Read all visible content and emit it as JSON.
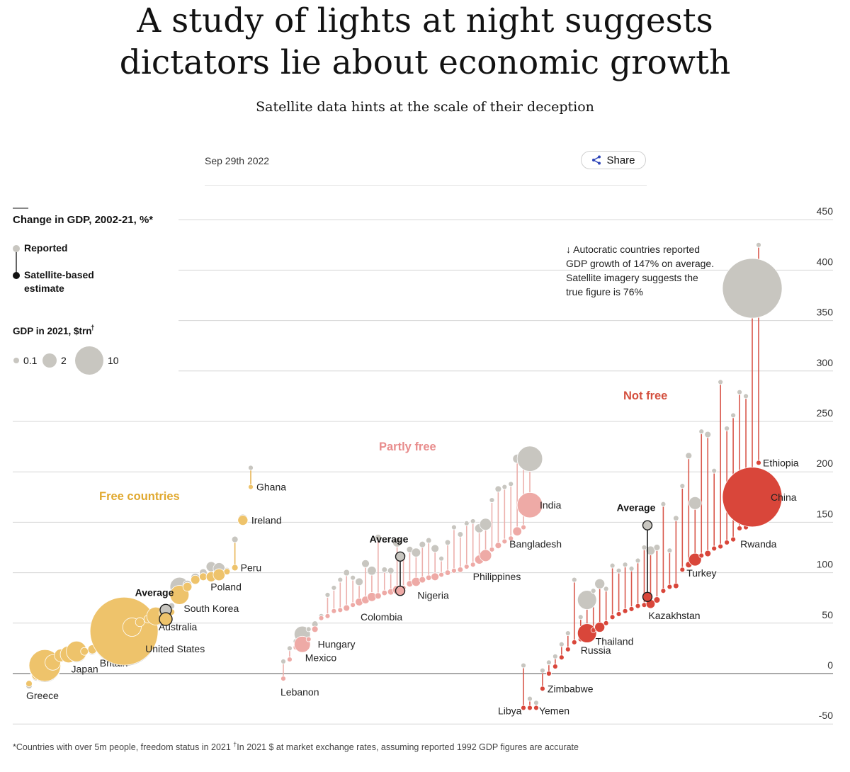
{
  "article": {
    "headline_line1": "A study of lights at night suggests",
    "headline_line2": "dictators lie about economic growth",
    "subhead": "Satellite data hints at the scale of their deception",
    "date": "Sep 29th 2022",
    "share_label": "Share",
    "footnote_part1": "*Countries with over 5m people, freedom status in 2021 ",
    "footnote_dagger": "†",
    "footnote_part2": "In 2021 $ at market exchange rates, assuming reported 1992 GDP figures are accurate"
  },
  "colors": {
    "free": "#eec36b",
    "free_line": "#e8b656",
    "free_label": "#e0a82e",
    "partly": "#eeaaa6",
    "partly_line": "#ecb0ac",
    "partly_label": "#e88c8c",
    "notfree": "#d9463a",
    "notfree_line": "#d9584c",
    "notfree_label": "#d4503f",
    "reported": "#c8c6c0",
    "average_outline": "#1e1e1e",
    "grid": "#d6d6d6"
  },
  "chart_data": {
    "type": "scatter",
    "title": "Change in GDP, 2002-21, %*",
    "ylim": [
      -50,
      450
    ],
    "yticks": [
      450,
      400,
      350,
      300,
      250,
      200,
      150,
      100,
      50,
      0,
      -50
    ],
    "legend": {
      "reported": "Reported",
      "satellite": "Satellite-based estimate",
      "size_title": "GDP in 2021, $trn",
      "size_title_dagger": "†",
      "sizes": [
        {
          "label": "0.1",
          "value": 0.1
        },
        {
          "label": "2",
          "value": 2
        },
        {
          "label": "10",
          "value": 10
        }
      ]
    },
    "groups": [
      {
        "name": "Free countries",
        "key": "free"
      },
      {
        "name": "Partly free",
        "key": "partly"
      },
      {
        "name": "Not free",
        "key": "notfree"
      }
    ],
    "annotation": "Autocratic countries reported GDP growth of 147% on average. Satellite imagery suggests the true figure is 76%",
    "average_label": "Average",
    "series": [
      {
        "group": "free",
        "points": [
          {
            "name": "Greece",
            "reported": -12,
            "estimate": -10,
            "gdp": 0.2
          },
          {
            "reported": -2,
            "estimate": -1,
            "gdp": 0.6
          },
          {
            "reported": 7,
            "estimate": 8,
            "gdp": 5
          },
          {
            "name": "Japan",
            "reported": 11,
            "estimate": 11,
            "gdp": 1.2
          },
          {
            "reported": 18,
            "estimate": 18,
            "gdp": 0.8
          },
          {
            "reported": 19,
            "estimate": 19,
            "gdp": 1.4
          },
          {
            "reported": 21,
            "estimate": 22,
            "gdp": 2.1
          },
          {
            "reported": 22,
            "estimate": 22,
            "gdp": 0.3
          },
          {
            "reported": 23,
            "estimate": 24,
            "gdp": 0.4
          },
          {
            "reported": 25,
            "estimate": 26,
            "gdp": 0.3
          },
          {
            "name": "Britain",
            "reported": 27,
            "estimate": 28,
            "gdp": 3.1
          },
          {
            "reported": 30,
            "estimate": 31,
            "gdp": 1.0
          },
          {
            "name": "United States",
            "reported": 41,
            "estimate": 42,
            "gdp": 23
          },
          {
            "reported": 46,
            "estimate": 46,
            "gdp": 1.7
          },
          {
            "reported": 50,
            "estimate": 51,
            "gdp": 0.4
          },
          {
            "reported": 54,
            "estimate": 54,
            "gdp": 0.3
          },
          {
            "name": "Australia",
            "reported": 56,
            "estimate": 57,
            "gdp": 1.6
          },
          {
            "reported": 59,
            "estimate": 60,
            "gdp": 0.4
          },
          {
            "reported": 67,
            "estimate": 61,
            "gdp": 0.2
          },
          {
            "name": "South Korea",
            "reported": 86,
            "estimate": 78,
            "gdp": 1.8
          },
          {
            "reported": 88,
            "estimate": 86,
            "gdp": 0.4
          },
          {
            "reported": 95,
            "estimate": 93,
            "gdp": 0.4
          },
          {
            "reported": 100,
            "estimate": 96,
            "gdp": 0.3
          },
          {
            "reported": 106,
            "estimate": 96,
            "gdp": 0.5
          },
          {
            "name": "Poland",
            "reported": 104,
            "estimate": 98,
            "gdp": 0.7
          },
          {
            "reported": 102,
            "estimate": 101,
            "gdp": 0.2
          },
          {
            "name": "Peru",
            "reported": 133,
            "estimate": 105,
            "gdp": 0.2
          },
          {
            "name": "Ireland",
            "reported": 153,
            "estimate": 152,
            "gdp": 0.5
          },
          {
            "name": "Ghana",
            "reported": 204,
            "estimate": 185,
            "gdp": 0.08
          }
        ]
      },
      {
        "group": "partly",
        "points": [
          {
            "name": "Lebanon",
            "reported": 12,
            "estimate": -5,
            "gdp": 0.02
          },
          {
            "reported": 25,
            "estimate": 14,
            "gdp": 0.1
          },
          {
            "reported": 32,
            "estimate": 26,
            "gdp": 0.15
          },
          {
            "name": "Mexico",
            "reported": 39,
            "estimate": 29,
            "gdp": 1.3
          },
          {
            "reported": 44,
            "estimate": 34,
            "gdp": 0.05
          },
          {
            "name": "Hungary",
            "reported": 49,
            "estimate": 44,
            "gdp": 0.2
          },
          {
            "reported": 57,
            "estimate": 55,
            "gdp": 0.05
          },
          {
            "reported": 78,
            "estimate": 57,
            "gdp": 0.06
          },
          {
            "reported": 85,
            "estimate": 62,
            "gdp": 0.05
          },
          {
            "reported": 93,
            "estimate": 63,
            "gdp": 0.05
          },
          {
            "reported": 100,
            "estimate": 65,
            "gdp": 0.2
          },
          {
            "reported": 95,
            "estimate": 68,
            "gdp": 0.1
          },
          {
            "reported": 91,
            "estimate": 71,
            "gdp": 0.3
          },
          {
            "name": "Colombia",
            "reported": 109,
            "estimate": 73,
            "gdp": 0.3
          },
          {
            "reported": 102,
            "estimate": 76,
            "gdp": 0.4
          },
          {
            "reported": 135,
            "estimate": 77,
            "gdp": 0.2
          },
          {
            "reported": 103,
            "estimate": 80,
            "gdp": 0.15
          },
          {
            "reported": 102,
            "estimate": 81,
            "gdp": 0.2
          },
          {
            "reported": 130,
            "estimate": 83,
            "gdp": 0.4
          },
          {
            "reported": 117,
            "estimate": 85,
            "gdp": 0.1
          },
          {
            "reported": 123,
            "estimate": 89,
            "gdp": 0.2
          },
          {
            "name": "Nigeria",
            "reported": 120,
            "estimate": 91,
            "gdp": 0.4
          },
          {
            "reported": 128,
            "estimate": 93,
            "gdp": 0.2
          },
          {
            "reported": 132,
            "estimate": 95,
            "gdp": 0.15
          },
          {
            "reported": 124,
            "estimate": 96,
            "gdp": 0.3
          },
          {
            "reported": 114,
            "estimate": 98,
            "gdp": 0.1
          },
          {
            "reported": 130,
            "estimate": 100,
            "gdp": 0.15
          },
          {
            "reported": 145,
            "estimate": 102,
            "gdp": 0.05
          },
          {
            "reported": 138,
            "estimate": 103,
            "gdp": 0.15
          },
          {
            "reported": 149,
            "estimate": 106,
            "gdp": 0.05
          },
          {
            "reported": 151,
            "estimate": 108,
            "gdp": 0.12
          },
          {
            "name": "Philippines",
            "reported": 144,
            "estimate": 113,
            "gdp": 0.4
          },
          {
            "reported": 148,
            "estimate": 117,
            "gdp": 0.7
          },
          {
            "reported": 172,
            "estimate": 123,
            "gdp": 0.05
          },
          {
            "reported": 183,
            "estimate": 127,
            "gdp": 0.2
          },
          {
            "reported": 185,
            "estimate": 131,
            "gdp": 0.05
          },
          {
            "reported": 188,
            "estimate": 134,
            "gdp": 0.05
          },
          {
            "name": "Bangladesh",
            "reported": 213,
            "estimate": 141,
            "gdp": 0.4
          },
          {
            "reported": 208,
            "estimate": 145,
            "gdp": 0.1
          },
          {
            "name": "India",
            "reported": 213,
            "estimate": 167,
            "gdp": 3.2
          }
        ]
      },
      {
        "group": "notfree",
        "points": [
          {
            "name": "Libya",
            "reported": 8,
            "estimate": -34,
            "gdp": 0.04
          },
          {
            "reported": -25,
            "estimate": -34,
            "gdp": 0.02
          },
          {
            "name": "Yemen",
            "reported": -29,
            "estimate": -34,
            "gdp": 0.02
          },
          {
            "name": "Zimbabwe",
            "reported": 3,
            "estimate": -15,
            "gdp": 0.02
          },
          {
            "reported": 11,
            "estimate": 0,
            "gdp": 0.05
          },
          {
            "reported": 17,
            "estimate": 7,
            "gdp": 0.1
          },
          {
            "reported": 29,
            "estimate": 16,
            "gdp": 0.04
          },
          {
            "reported": 40,
            "estimate": 24,
            "gdp": 0.06
          },
          {
            "reported": 93,
            "estimate": 31,
            "gdp": 0.07
          },
          {
            "reported": 56,
            "estimate": 34,
            "gdp": 0.1
          },
          {
            "name": "Russia",
            "reported": 73,
            "estimate": 40,
            "gdp": 1.8
          },
          {
            "reported": 82,
            "estimate": 43,
            "gdp": 0.1
          },
          {
            "name": "Thailand",
            "reported": 89,
            "estimate": 46,
            "gdp": 0.5
          },
          {
            "reported": 84,
            "estimate": 50,
            "gdp": 0.1
          },
          {
            "reported": 107,
            "estimate": 56,
            "gdp": 0.1
          },
          {
            "reported": 102,
            "estimate": 59,
            "gdp": 0.1
          },
          {
            "reported": 108,
            "estimate": 62,
            "gdp": 0.1
          },
          {
            "reported": 104,
            "estimate": 64,
            "gdp": 0.1
          },
          {
            "reported": 112,
            "estimate": 67,
            "gdp": 0.1
          },
          {
            "reported": 125,
            "estimate": 68,
            "gdp": 0.05
          },
          {
            "reported": 122,
            "estimate": 69,
            "gdp": 0.4
          },
          {
            "name": "Kazakhstan",
            "reported": 125,
            "estimate": 73,
            "gdp": 0.2
          },
          {
            "reported": 168,
            "estimate": 82,
            "gdp": 0.1
          },
          {
            "reported": 122,
            "estimate": 86,
            "gdp": 0.06
          },
          {
            "reported": 154,
            "estimate": 87,
            "gdp": 0.15
          },
          {
            "reported": 186,
            "estimate": 103,
            "gdp": 0.1
          },
          {
            "reported": 216,
            "estimate": 108,
            "gdp": 0.2
          },
          {
            "name": "Turkey",
            "reported": 169,
            "estimate": 113,
            "gdp": 0.8
          },
          {
            "reported": 240,
            "estimate": 117,
            "gdp": 0.05
          },
          {
            "reported": 237,
            "estimate": 119,
            "gdp": 0.2
          },
          {
            "reported": 201,
            "estimate": 124,
            "gdp": 0.1
          },
          {
            "reported": 289,
            "estimate": 126,
            "gdp": 0.05
          },
          {
            "reported": 243,
            "estimate": 130,
            "gdp": 0.1
          },
          {
            "reported": 256,
            "estimate": 133,
            "gdp": 0.1
          },
          {
            "name": "Rwanda",
            "reported": 279,
            "estimate": 144,
            "gdp": 0.01
          },
          {
            "reported": 275,
            "estimate": 145,
            "gdp": 0.1
          },
          {
            "name": "China",
            "reported": 382,
            "estimate": 175,
            "gdp": 17.7
          },
          {
            "name": "Ethiopia",
            "reported": 425,
            "estimate": 209,
            "gdp": 0.1
          }
        ]
      }
    ],
    "averages": [
      {
        "group": "free",
        "reported": 63,
        "estimate": 54
      },
      {
        "group": "partly",
        "reported": 116,
        "estimate": 82
      },
      {
        "group": "notfree",
        "reported": 147,
        "estimate": 76
      }
    ]
  }
}
